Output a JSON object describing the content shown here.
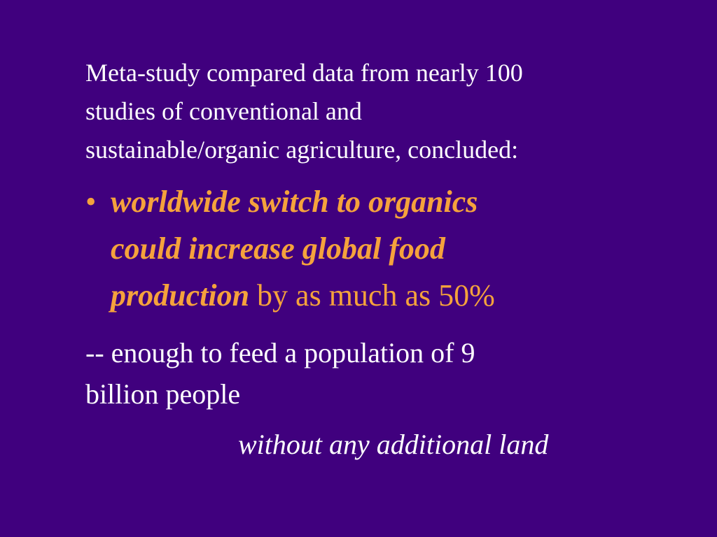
{
  "slide": {
    "intro": [
      "Meta-study compared data from nearly 100",
      "studies of conventional and",
      "sustainable/organic agriculture, concluded:"
    ],
    "bullet": {
      "marker": "•",
      "emphasis": [
        "worldwide switch to organics",
        "could increase global food",
        "production"
      ],
      "rest": "by as much as 50%"
    },
    "note": [
      "-- enough to feed a population of 9",
      "billion people"
    ],
    "closing": "without any additional land"
  }
}
